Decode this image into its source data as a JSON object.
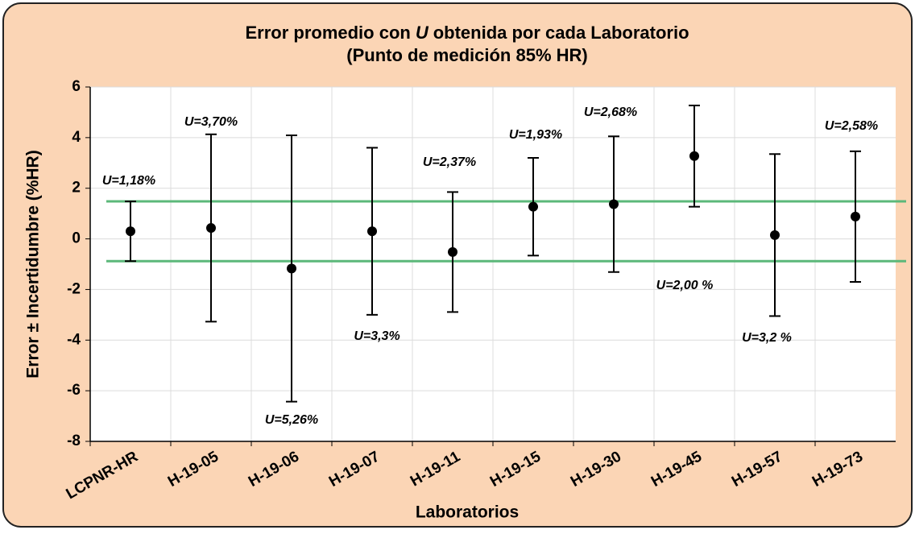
{
  "chart_data": {
    "type": "errorbar",
    "title": [
      "Error promedio con",
      "U",
      "obtenida por cada Laboratorio"
    ],
    "subtitle": "(Punto de medición 85% HR)",
    "x_label": "Laboratorios",
    "y_label": "Error ± Incertidumbre (%HR)",
    "categories": [
      "LCPNR-HR",
      "H-19-05",
      "H-19-06",
      "H-19-07",
      "H-19-11",
      "H-19-15",
      "H-19-30",
      "H-19-45",
      "H-19-57",
      "H-19-73"
    ],
    "values": [
      0.3,
      0.43,
      -1.17,
      0.3,
      -0.52,
      1.27,
      1.37,
      3.27,
      0.15,
      0.88
    ],
    "errors": [
      1.18,
      3.7,
      5.26,
      3.3,
      2.37,
      1.93,
      2.68,
      2.0,
      3.2,
      2.58
    ],
    "error_labels": [
      "U=1,18%",
      "U=3,70%",
      "U=5,26%",
      "U=3,3%",
      "U=2,37%",
      "U=1,93%",
      "U=2,68%",
      "U=2,00 %",
      "U=3,2 %",
      "U=2,58%"
    ],
    "color": "#000000",
    "reference_lines": [
      1.48,
      -0.88
    ],
    "reference_color": "#5cb87a",
    "ylim": [
      -8,
      6
    ],
    "yticks": [
      -8,
      -6,
      -4,
      -2,
      0,
      2,
      4,
      6
    ],
    "grid": true
  }
}
